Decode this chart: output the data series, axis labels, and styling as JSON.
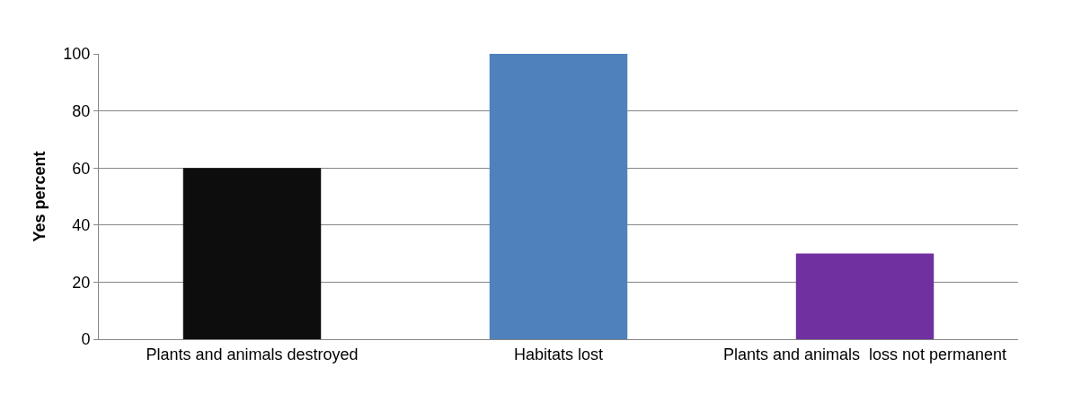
{
  "chart_data": {
    "type": "bar",
    "ylabel": "Yes percent",
    "categories": [
      "Plants and animals destroyed",
      "Habitats lost",
      "Plants and animals  loss not permanent"
    ],
    "values": [
      60,
      100,
      30
    ],
    "colors": [
      "#0d0d0d",
      "#4f81bd",
      "#7030a0"
    ],
    "ylim": [
      0,
      100
    ],
    "yticks": [
      0,
      20,
      40,
      60,
      80,
      100
    ],
    "grid": "y"
  }
}
